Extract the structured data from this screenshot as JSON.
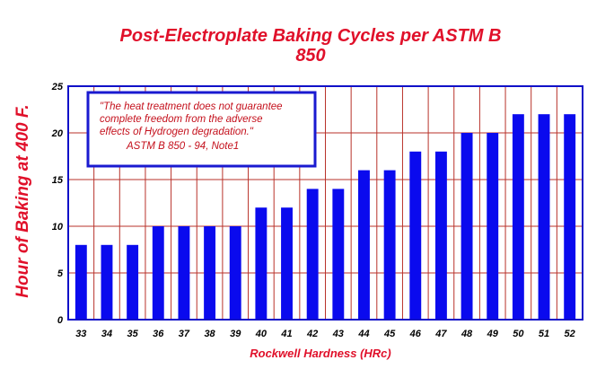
{
  "chart_data": {
    "type": "bar",
    "title_lines": [
      "Post-Electroplate Baking Cycles per ASTM B",
      "850"
    ],
    "xlabel": "Rockwell Hardness (HRc)",
    "ylabel": "Hour of Baking at 400 F.",
    "categories": [
      "33",
      "34",
      "35",
      "36",
      "37",
      "38",
      "39",
      "40",
      "41",
      "42",
      "43",
      "44",
      "45",
      "46",
      "47",
      "48",
      "49",
      "50",
      "51",
      "52"
    ],
    "values": [
      8,
      8,
      8,
      10,
      10,
      10,
      10,
      12,
      12,
      14,
      14,
      16,
      16,
      18,
      18,
      20,
      20,
      22,
      22,
      22
    ],
    "ylim": [
      0,
      25
    ],
    "yticks": [
      0,
      5,
      10,
      15,
      20,
      25
    ],
    "grid": true,
    "annotation": {
      "lines": [
        "\"The heat treatment does not guarantee",
        "complete freedom from the adverse",
        "effects of Hydrogen degradation.\"",
        "ASTM B 850 - 94, Note1"
      ]
    },
    "colors": {
      "bar": "#0a0aee",
      "grid": "#b8322a",
      "frame": "#1010c8",
      "title": "#e0102a",
      "annotation_border": "#1a1ad0"
    }
  }
}
